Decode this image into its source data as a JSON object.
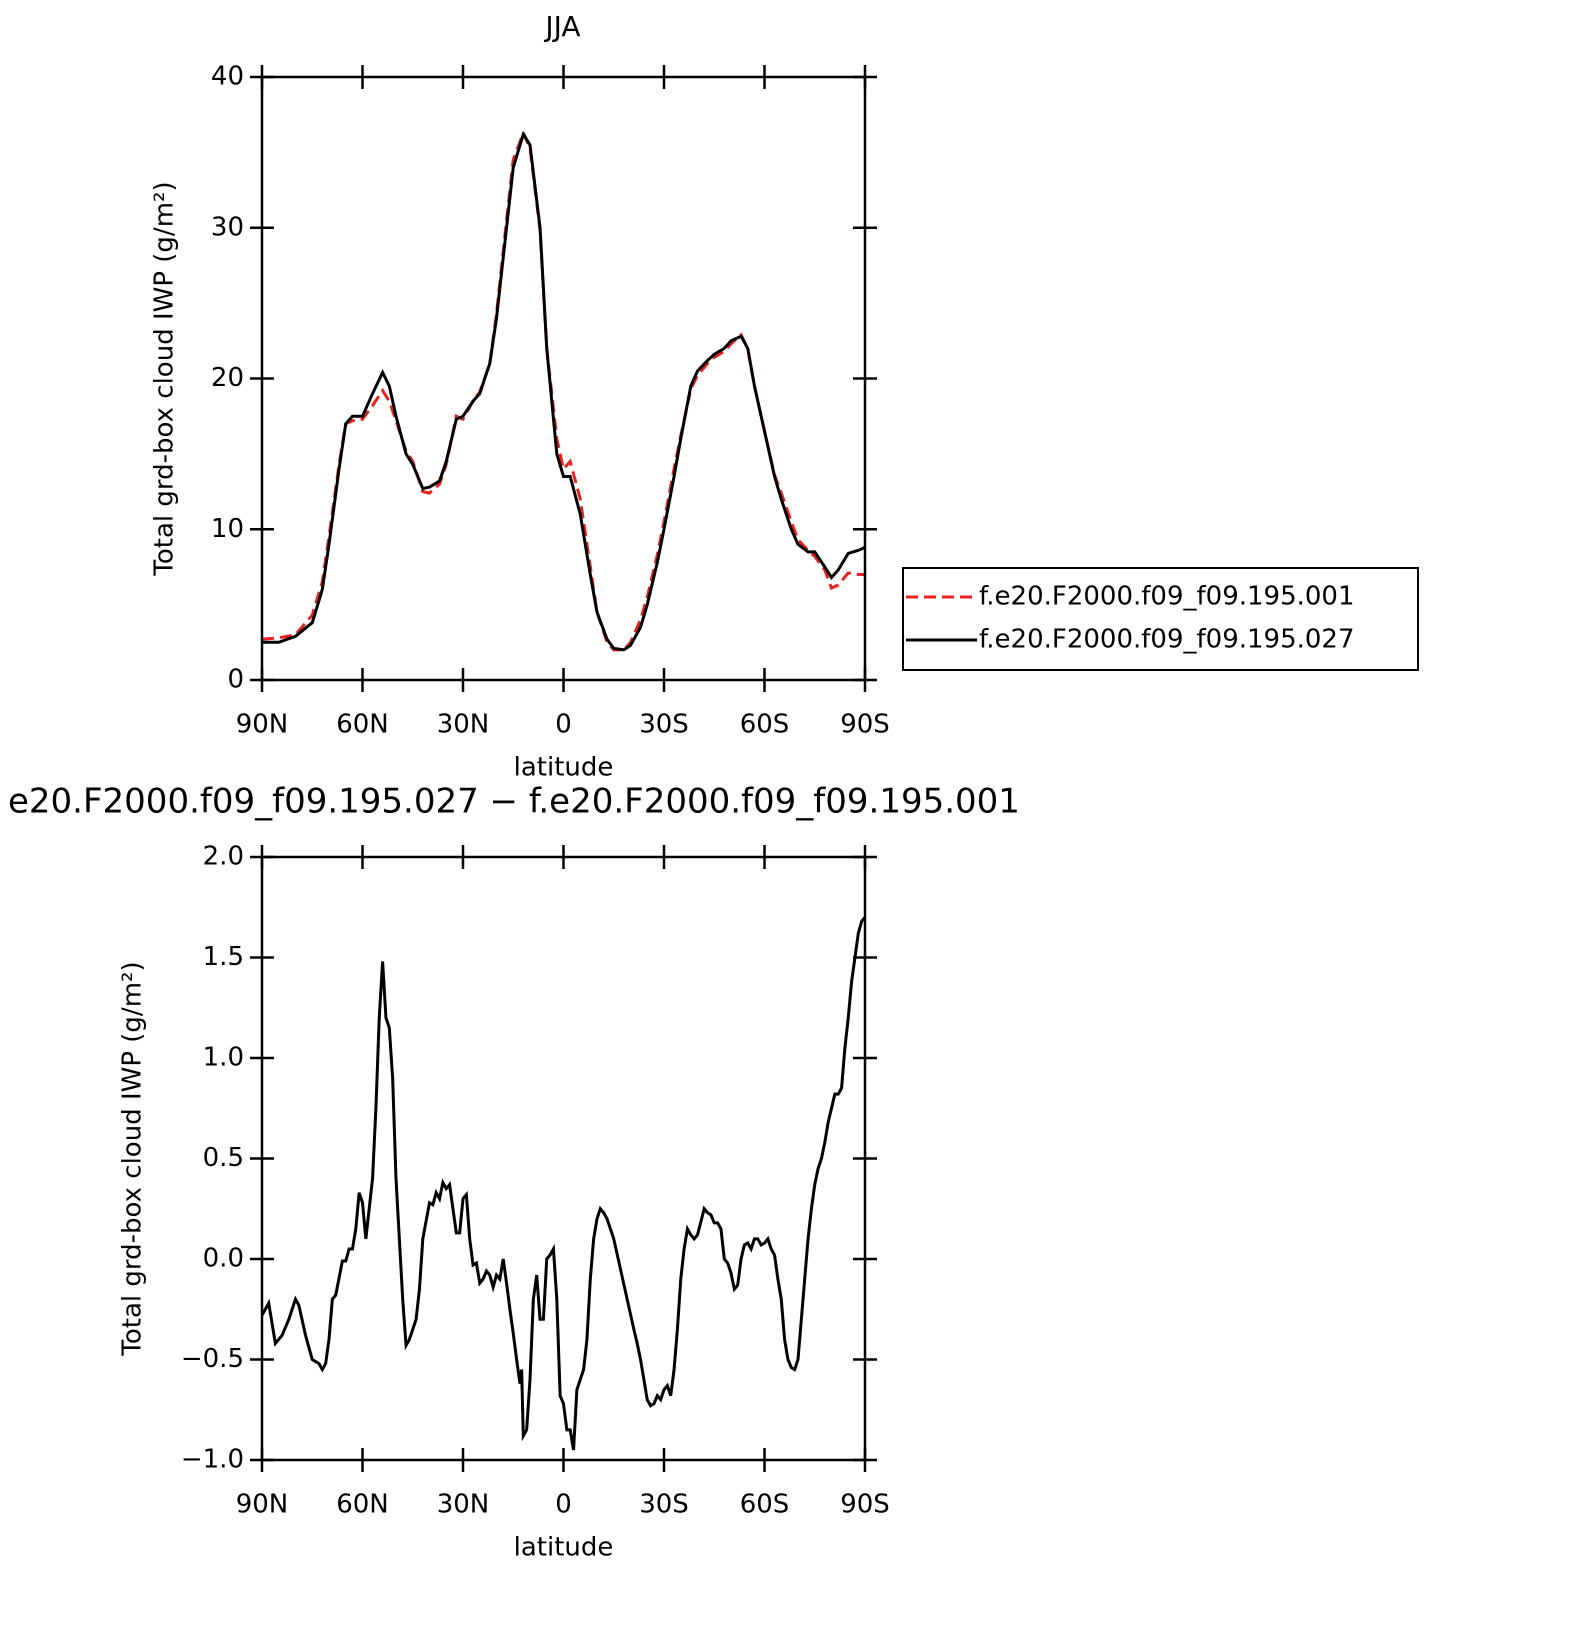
{
  "chart_data": [
    {
      "type": "line",
      "title": "JJA",
      "ylabel": "Total grd-box cloud IWP (g/m²)",
      "xlabel": "latitude",
      "xlim": [
        90,
        -90
      ],
      "xticks": [
        {
          "value": 90,
          "label": "90N"
        },
        {
          "value": 60,
          "label": "60N"
        },
        {
          "value": 30,
          "label": "30N"
        },
        0,
        {
          "value": -30,
          "label": "30S"
        },
        {
          "value": -60,
          "label": "60S"
        },
        {
          "value": -90,
          "label": "90S"
        }
      ],
      "ylim": [
        0,
        40
      ],
      "yticks": [
        0,
        10,
        20,
        30,
        40
      ],
      "grid": false,
      "x": [
        90,
        85,
        80,
        75,
        72,
        70,
        67,
        65,
        63,
        60,
        57,
        54,
        52,
        50,
        47,
        45,
        42,
        40,
        37,
        35,
        32,
        30,
        27,
        25,
        22,
        20,
        17,
        15,
        12,
        10,
        7,
        5,
        2,
        0,
        -2,
        -5,
        -8,
        -10,
        -13,
        -15,
        -18,
        -20,
        -23,
        -25,
        -28,
        -30,
        -33,
        -35,
        -38,
        -40,
        -43,
        -45,
        -48,
        -50,
        -53,
        -55,
        -57,
        -60,
        -63,
        -65,
        -68,
        -70,
        -73,
        -75,
        -78,
        -80,
        -82,
        -85,
        -88,
        -90
      ],
      "series": [
        {
          "name": "f.e20.F2000.f09_f09.195.001",
          "color": "#e8221c",
          "line_style": "dashed",
          "values": [
            2.7,
            2.8,
            3.0,
            4.3,
            6.5,
            9.5,
            14.3,
            17,
            17.2,
            17.3,
            18.2,
            19.2,
            18.5,
            17.2,
            15.2,
            14.5,
            12.5,
            12.4,
            13,
            14.3,
            17.5,
            17.3,
            18.5,
            19.1,
            21,
            24.3,
            30.5,
            34.5,
            36.3,
            35.3,
            29.8,
            22,
            16,
            14,
            14.5,
            12,
            7.5,
            4.5,
            2.5,
            2.0,
            2.0,
            2.5,
            4,
            5.5,
            8.3,
            10.5,
            14,
            16.2,
            19.3,
            20.2,
            21,
            21.4,
            21.8,
            22.3,
            22.9,
            22,
            19.5,
            16.5,
            13.6,
            12.4,
            10.5,
            9.3,
            8.6,
            8.2,
            7.3,
            6.1,
            6.3,
            7.1,
            7,
            7
          ]
        },
        {
          "name": "f.e20.F2000.f09_f09.195.027",
          "color": "#000000",
          "line_style": "solid",
          "values": [
            2.5,
            2.5,
            2.9,
            3.8,
            6,
            9,
            14,
            17,
            17.5,
            17.5,
            19,
            20.4,
            19.5,
            17.5,
            15,
            14.3,
            12.7,
            12.8,
            13.2,
            14.5,
            17.3,
            17.5,
            18.5,
            19,
            21,
            24,
            30,
            34,
            36.2,
            35.5,
            30,
            22,
            15,
            13.5,
            13.5,
            11,
            7,
            4.5,
            2.7,
            2.1,
            2.0,
            2.3,
            3.5,
            5,
            7.8,
            10,
            13.5,
            16,
            19.5,
            20.5,
            21.2,
            21.6,
            22,
            22.5,
            22.8,
            22,
            19.5,
            16.5,
            13.5,
            12,
            10,
            9,
            8.5,
            8.5,
            7.5,
            6.8,
            7.3,
            8.4,
            8.6,
            8.8
          ]
        }
      ]
    },
    {
      "type": "line",
      "title": "e20.F2000.f09_f09.195.027 − f.e20.F2000.f09_f09.195.001",
      "ylabel": "Total grd-box cloud IWP (g/m²)",
      "xlabel": "latitude",
      "xlim": [
        90,
        -90
      ],
      "xticks": [
        {
          "value": 90,
          "label": "90N"
        },
        {
          "value": 60,
          "label": "60N"
        },
        {
          "value": 30,
          "label": "30N"
        },
        0,
        {
          "value": -30,
          "label": "30S"
        },
        {
          "value": -60,
          "label": "60S"
        },
        {
          "value": -90,
          "label": "90S"
        }
      ],
      "ylim": [
        -1,
        2
      ],
      "yticks": [
        {
          "value": -1,
          "label": "−1.0"
        },
        {
          "value": -0.5,
          "label": "−0.5"
        },
        {
          "value": 0,
          "label": "0.0"
        },
        0.5,
        {
          "value": 1,
          "label": "1.0"
        },
        1.5,
        {
          "value": 2,
          "label": "2.0"
        }
      ],
      "grid": false,
      "color": "#000000",
      "x": [
        90,
        88,
        86,
        84,
        82,
        80,
        79,
        77,
        75,
        73,
        72,
        71,
        70,
        69,
        68,
        66,
        65,
        64,
        63,
        62,
        61,
        60,
        59,
        57,
        56,
        55,
        54,
        53,
        52,
        51,
        50,
        48,
        47,
        46,
        44,
        43,
        42,
        40,
        39,
        38,
        37,
        36,
        35,
        34,
        33,
        32,
        31,
        30,
        29,
        28,
        27,
        26,
        25,
        24,
        23,
        22,
        21,
        20,
        19,
        18,
        17,
        16,
        15,
        14,
        13,
        12.5,
        12,
        11,
        10,
        9,
        8,
        7,
        6,
        5,
        4,
        3,
        2,
        1,
        0,
        -1,
        -2,
        -3,
        -4,
        -5,
        -6,
        -7,
        -8,
        -9,
        -10,
        -11,
        -12,
        -13,
        -14,
        -15,
        -17,
        -19,
        -21,
        -22,
        -23,
        -24,
        -25,
        -26,
        -27,
        -28,
        -29,
        -30,
        -31,
        -32,
        -33,
        -34,
        -35,
        -36,
        -37,
        -38,
        -39,
        -40,
        -42,
        -43,
        -44,
        -45,
        -46,
        -47,
        -48,
        -49,
        -50,
        -51,
        -52,
        -53,
        -54,
        -55,
        -56,
        -57,
        -58,
        -59,
        -60,
        -61,
        -62,
        -63,
        -64,
        -65,
        -66,
        -67,
        -68,
        -69,
        -70,
        -71,
        -72,
        -73,
        -74,
        -75,
        -76,
        -77,
        -78,
        -79,
        -80,
        -81,
        -82,
        -83,
        -84,
        -85,
        -86,
        -87,
        -88,
        -89,
        -90
      ],
      "values": [
        -0.28,
        -0.22,
        -0.42,
        -0.38,
        -0.3,
        -0.2,
        -0.23,
        -0.38,
        -0.5,
        -0.52,
        -0.55,
        -0.52,
        -0.4,
        -0.2,
        -0.18,
        -0.01,
        -0.01,
        0.05,
        0.05,
        0.15,
        0.33,
        0.28,
        0.1,
        0.4,
        0.75,
        1.2,
        1.48,
        1.2,
        1.15,
        0.9,
        0.4,
        -0.2,
        -0.43,
        -0.4,
        -0.3,
        -0.15,
        0.1,
        0.28,
        0.27,
        0.33,
        0.3,
        0.38,
        0.35,
        0.37,
        0.25,
        0.13,
        0.13,
        0.3,
        0.32,
        0.1,
        -0.03,
        -0.02,
        -0.12,
        -0.1,
        -0.06,
        -0.08,
        -0.14,
        -0.08,
        -0.1,
        0.0,
        -0.12,
        -0.25,
        -0.37,
        -0.5,
        -0.62,
        -0.55,
        -0.88,
        -0.85,
        -0.6,
        -0.2,
        -0.08,
        -0.3,
        -0.3,
        0.0,
        0.02,
        0.05,
        -0.2,
        -0.68,
        -0.72,
        -0.85,
        -0.85,
        -0.95,
        -0.65,
        -0.6,
        -0.55,
        -0.4,
        -0.1,
        0.1,
        0.2,
        0.25,
        0.23,
        0.2,
        0.15,
        0.1,
        -0.05,
        -0.2,
        -0.35,
        -0.42,
        -0.5,
        -0.6,
        -0.7,
        -0.73,
        -0.72,
        -0.68,
        -0.7,
        -0.65,
        -0.63,
        -0.68,
        -0.55,
        -0.35,
        -0.1,
        0.05,
        0.15,
        0.12,
        0.1,
        0.12,
        0.25,
        0.23,
        0.22,
        0.18,
        0.18,
        0.15,
        0.0,
        -0.02,
        -0.07,
        -0.15,
        -0.13,
        0.0,
        0.07,
        0.08,
        0.05,
        0.1,
        0.1,
        0.07,
        0.08,
        0.1,
        0.05,
        0.02,
        -0.1,
        -0.2,
        -0.4,
        -0.5,
        -0.54,
        -0.55,
        -0.5,
        -0.3,
        -0.1,
        0.1,
        0.25,
        0.37,
        0.45,
        0.5,
        0.58,
        0.68,
        0.75,
        0.82,
        0.82,
        0.85,
        1.05,
        1.2,
        1.38,
        1.5,
        1.62,
        1.68,
        1.7
      ]
    }
  ]
}
